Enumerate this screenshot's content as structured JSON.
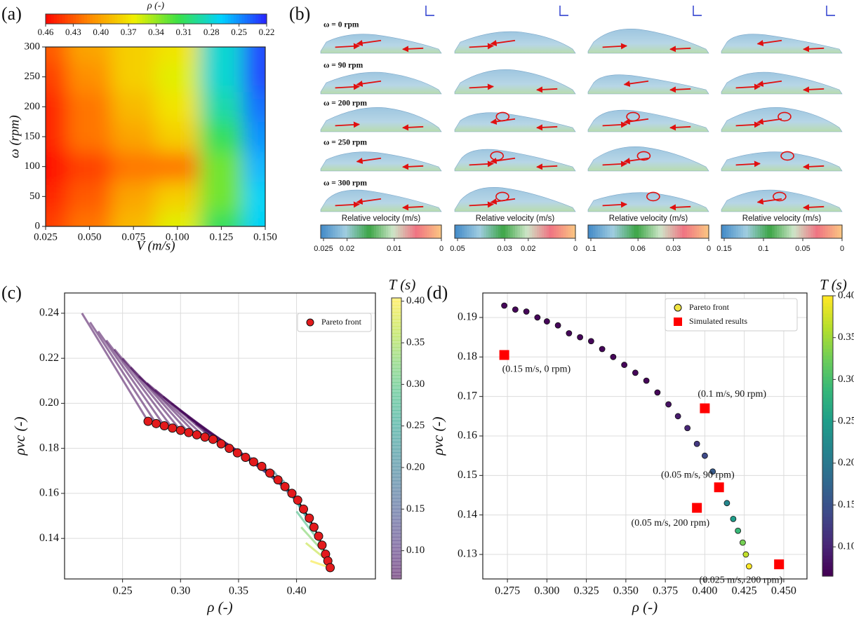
{
  "chart_data": [
    {
      "type": "contour",
      "panel": "(a)",
      "colorbar_title": "ρ (-)",
      "xlabel": "V (m/s)",
      "ylabel": "ω (rpm)",
      "x": [
        0.025,
        0.05,
        0.075,
        0.1,
        0.125,
        0.15
      ],
      "y": [
        0,
        50,
        100,
        150,
        200,
        250,
        300
      ],
      "z": [
        [
          0.44,
          0.42,
          0.39,
          0.36,
          0.31,
          0.27
        ],
        [
          0.45,
          0.43,
          0.4,
          0.38,
          0.33,
          0.27
        ],
        [
          0.46,
          0.44,
          0.42,
          0.42,
          0.33,
          0.26
        ],
        [
          0.45,
          0.42,
          0.4,
          0.38,
          0.31,
          0.25
        ],
        [
          0.45,
          0.42,
          0.39,
          0.37,
          0.29,
          0.24
        ],
        [
          0.44,
          0.41,
          0.38,
          0.36,
          0.28,
          0.23
        ],
        [
          0.43,
          0.4,
          0.38,
          0.37,
          0.28,
          0.23
        ]
      ],
      "xlim": [
        0.025,
        0.15
      ],
      "ylim": [
        0,
        300
      ],
      "xticks": [
        0.025,
        {
          "value": 0.05,
          "label": "0.050"
        },
        0.075,
        {
          "value": 0.1,
          "label": "0.100"
        },
        0.125,
        {
          "value": 0.15,
          "label": "0.150"
        }
      ],
      "yticks": [
        0,
        50,
        100,
        150,
        200,
        250,
        300
      ],
      "clim": [
        0.46,
        0.22
      ],
      "cticks": [
        0.46,
        0.43,
        {
          "value": 0.4,
          "label": "0.40"
        },
        0.37,
        0.34,
        0.31,
        0.28,
        0.25,
        0.22
      ],
      "colormap": "jet"
    },
    {
      "type": "flow-field",
      "panel": "(b)",
      "row_labels": [
        "ω = 0 rpm",
        "ω = 90 rpm",
        "ω = 200 rpm",
        "ω = 250 rpm",
        "ω = 300 rpm"
      ],
      "axis_label": "Relative velocity (m/s)",
      "colorbars": [
        {
          "lim": [
            0.025,
            0
          ],
          "ticks": [
            0.025,
            0.02,
            0.01,
            0
          ]
        },
        {
          "lim": [
            0.05,
            0
          ],
          "ticks": [
            0.05,
            0.03,
            0.02,
            0
          ]
        },
        {
          "lim": [
            0.1,
            0
          ],
          "ticks": [
            0.1,
            0.06,
            0.03,
            0
          ]
        },
        {
          "lim": [
            0.15,
            0
          ],
          "ticks": [
            0.15,
            0.1,
            0.05,
            0
          ]
        }
      ]
    },
    {
      "type": "scatter",
      "panel": "(c)",
      "xlabel": "ρ (-)",
      "ylabel": "ρvc (-)",
      "grid": true,
      "legend": "upper right",
      "xlim": [
        0.2,
        0.468
      ],
      "ylim": [
        0.122,
        0.249
      ],
      "xticks": [
        0.25,
        {
          "value": 0.3,
          "label": "0.30"
        },
        0.35,
        {
          "value": 0.4,
          "label": "0.40"
        }
      ],
      "yticks": [
        0.14,
        0.16,
        0.18,
        {
          "value": 0.2,
          "label": "0.20"
        },
        0.22,
        0.24
      ],
      "colorbar": {
        "title": "T (s)",
        "lim": [
          0.066,
          0.404
        ],
        "ticks": [
          {
            "value": 0.1,
            "label": "0.10"
          },
          0.15,
          {
            "value": 0.2,
            "label": "0.20"
          },
          0.25,
          {
            "value": 0.3,
            "label": "0.30"
          },
          0.35,
          {
            "value": 0.4,
            "label": "0.40"
          }
        ],
        "alpha": 0.55
      },
      "fan": {
        "x": [
          0.215,
          0.222,
          0.229,
          0.236,
          0.243,
          0.25,
          0.257,
          0.264,
          0.271,
          0.278,
          0.285,
          0.292,
          0.299,
          0.306,
          0.313,
          0.32,
          0.33,
          0.34,
          0.35,
          0.36,
          0.37,
          0.38,
          0.388,
          0.395,
          0.4,
          0.404,
          0.408,
          0.412
        ],
        "values": [
          0.24,
          0.236,
          0.232,
          0.228,
          0.224,
          0.22,
          0.216,
          0.212,
          0.209,
          0.206,
          0.203,
          0.2,
          0.197,
          0.194,
          0.191,
          0.188,
          0.185,
          0.182,
          0.179,
          0.176,
          0.173,
          0.17,
          0.166,
          0.16,
          0.152,
          0.145,
          0.138,
          0.13
        ],
        "T": [
          0.07,
          0.07,
          0.07,
          0.07,
          0.07,
          0.07,
          0.07,
          0.07,
          0.07,
          0.07,
          0.07,
          0.07,
          0.07,
          0.07,
          0.07,
          0.08,
          0.09,
          0.1,
          0.12,
          0.14,
          0.16,
          0.19,
          0.22,
          0.25,
          0.29,
          0.33,
          0.37,
          0.4
        ]
      },
      "series": [
        {
          "name": "Pareto front",
          "color": "#e31a1c",
          "line": true,
          "x": [
            0.272,
            0.279,
            0.286,
            0.293,
            0.3,
            0.307,
            0.314,
            0.321,
            0.328,
            0.335,
            0.342,
            0.349,
            0.356,
            0.363,
            0.37,
            0.377,
            0.384,
            0.39,
            0.396,
            0.401,
            0.406,
            0.411,
            0.415,
            0.419,
            0.422,
            0.425,
            0.427,
            0.429
          ],
          "values": [
            0.192,
            0.191,
            0.19,
            0.189,
            0.188,
            0.187,
            0.186,
            0.185,
            0.184,
            0.182,
            0.18,
            0.178,
            0.176,
            0.174,
            0.172,
            0.169,
            0.166,
            0.163,
            0.16,
            0.157,
            0.153,
            0.149,
            0.145,
            0.141,
            0.137,
            0.133,
            0.13,
            0.127
          ]
        }
      ]
    },
    {
      "type": "scatter",
      "panel": "(d)",
      "xlabel": "ρ (-)",
      "ylabel": "ρvc (-)",
      "grid": true,
      "legend": "upper right",
      "xlim": [
        0.2594,
        0.4647
      ],
      "ylim": [
        0.1238,
        0.1962
      ],
      "xticks": [
        0.275,
        {
          "value": 0.3,
          "label": "0.300"
        },
        0.325,
        {
          "value": 0.35,
          "label": "0.350"
        },
        0.375,
        {
          "value": 0.4,
          "label": "0.400"
        },
        0.425,
        {
          "value": 0.45,
          "label": "0.450"
        }
      ],
      "yticks": [
        0.13,
        0.14,
        0.15,
        0.16,
        0.17,
        0.18,
        0.19
      ],
      "colorbar": {
        "title": "T (s)",
        "lim": [
          0.065,
          0.4
        ],
        "ticks": [
          {
            "value": 0.1,
            "label": "0.10"
          },
          0.15,
          {
            "value": 0.2,
            "label": "0.20"
          },
          0.25,
          {
            "value": 0.3,
            "label": "0.30"
          },
          0.35,
          {
            "value": 0.4,
            "label": "0.40"
          }
        ],
        "alpha": 1
      },
      "series": [
        {
          "name": "Pareto front",
          "color": "#f0e442",
          "x": [
            0.273,
            0.28,
            0.287,
            0.294,
            0.3,
            0.307,
            0.314,
            0.321,
            0.328,
            0.335,
            0.342,
            0.349,
            0.356,
            0.363,
            0.37,
            0.377,
            0.383,
            0.389,
            0.395,
            0.4,
            0.405,
            0.41,
            0.414,
            0.418,
            0.421,
            0.424,
            0.426,
            0.428
          ],
          "values": [
            0.193,
            0.192,
            0.1915,
            0.19,
            0.189,
            0.188,
            0.186,
            0.185,
            0.184,
            0.182,
            0.18,
            0.178,
            0.176,
            0.174,
            0.171,
            0.168,
            0.165,
            0.162,
            0.158,
            0.155,
            0.151,
            0.147,
            0.143,
            0.139,
            0.136,
            0.133,
            0.13,
            0.127
          ],
          "T": [
            0.07,
            0.07,
            0.07,
            0.07,
            0.07,
            0.07,
            0.07,
            0.07,
            0.07,
            0.07,
            0.07,
            0.07,
            0.07,
            0.07,
            0.07,
            0.08,
            0.09,
            0.1,
            0.12,
            0.14,
            0.16,
            0.19,
            0.22,
            0.25,
            0.29,
            0.33,
            0.37,
            0.4
          ]
        },
        {
          "name": "Simulated results",
          "color": "#ff0000",
          "marker": "square",
          "x": [
            0.273,
            0.4,
            0.409,
            0.395,
            0.447
          ],
          "values": [
            0.1805,
            0.167,
            0.147,
            0.1418,
            0.1275
          ],
          "labels": [
            "(0.15 m/s, 0 rpm)",
            "(0.1 m/s, 90 rpm)",
            "(0.05 m/s, 90 rpm)",
            "(0.05 m/s, 200 rpm)",
            "(0.025 m/s, 200 rpm)"
          ]
        }
      ]
    }
  ]
}
